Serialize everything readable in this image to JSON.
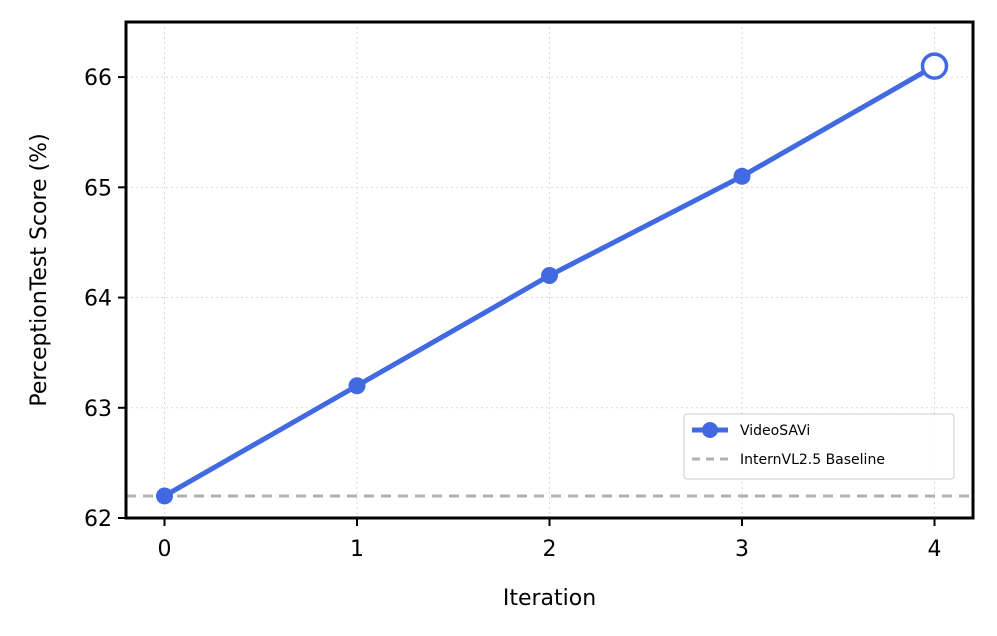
{
  "chart_data": {
    "type": "line",
    "xlabel": "Iteration",
    "ylabel": "PerceptionTest Score (%)",
    "x": [
      0,
      1,
      2,
      3,
      4
    ],
    "xticks": [
      "0",
      "1",
      "2",
      "3",
      "4"
    ],
    "xlim": [
      -0.2,
      4.2
    ],
    "ylim": [
      62,
      66.5
    ],
    "yticks": [
      "62",
      "63",
      "64",
      "65",
      "66"
    ],
    "grid": true,
    "legend_position": "lower-right",
    "series": [
      {
        "name": "VideoSAVi",
        "values": [
          62.2,
          63.2,
          64.2,
          65.1,
          66.1
        ],
        "color": "#4169E1",
        "last_marker": "hollow"
      }
    ],
    "baselines": [
      {
        "name": "InternVL2.5 Baseline",
        "value": 62.2,
        "color": "#b0b0b0",
        "style": "dashed"
      }
    ]
  }
}
